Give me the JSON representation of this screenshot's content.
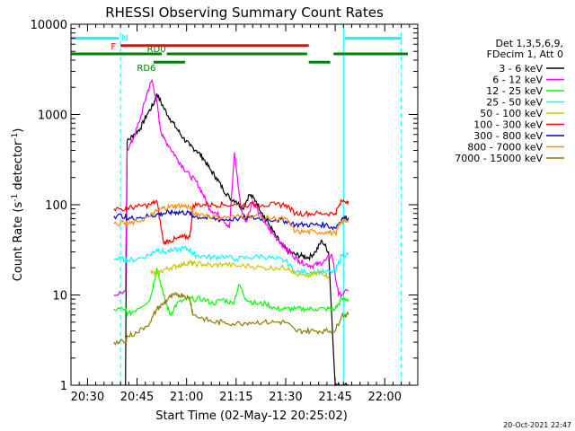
{
  "chart_data": {
    "type": "line",
    "title": "RHESSI Observing Summary Count Rates",
    "xlabel": "Start Time (02-May-12 20:25:02)",
    "ylabel": "Count Rate (s",
    "ylabel_sup": "-1",
    "ylabel_tail": " detector",
    "ylabel_sup2": "-1",
    "ylabel_close": ")",
    "x_unit": "minutes after 20:25:02",
    "xlim": [
      0,
      105
    ],
    "ylim": [
      1,
      10000
    ],
    "yscale": "log",
    "x_ticks": [
      {
        "value": 5,
        "label": "20:30"
      },
      {
        "value": 20,
        "label": "20:45"
      },
      {
        "value": 35,
        "label": "21:00"
      },
      {
        "value": 50,
        "label": "21:15"
      },
      {
        "value": 65,
        "label": "21:30"
      },
      {
        "value": 80,
        "label": "21:45"
      },
      {
        "value": 95,
        "label": "22:00"
      }
    ],
    "y_ticks": [
      {
        "value": 1,
        "label": "1"
      },
      {
        "value": 10,
        "label": "10"
      },
      {
        "value": 100,
        "label": "100"
      },
      {
        "value": 1000,
        "label": "1000"
      },
      {
        "value": 10000,
        "label": "10000"
      }
    ],
    "legend_placement": "right",
    "legend_header": [
      "Det 1,3,5,6,9,",
      "FDecim 1, Att 0"
    ],
    "series": [
      {
        "name": "3 - 6 keV",
        "color": "#000000",
        "x": [
          16.5,
          17,
          19,
          21,
          23,
          25,
          26,
          28,
          30,
          32,
          34,
          36,
          38,
          40,
          42,
          44,
          46,
          48,
          50,
          52,
          54,
          56,
          58,
          60,
          62,
          64,
          66,
          68,
          70,
          72,
          74,
          76,
          78,
          80,
          82,
          84
        ],
        "y": [
          1,
          500,
          600,
          700,
          1000,
          1300,
          1700,
          1200,
          900,
          700,
          550,
          450,
          400,
          330,
          250,
          200,
          150,
          120,
          110,
          90,
          130,
          110,
          80,
          60,
          45,
          35,
          30,
          28,
          27,
          26,
          30,
          40,
          30,
          1,
          1,
          1
        ]
      },
      {
        "name": "6 - 12 keV",
        "color": "#ff00ff",
        "x": [
          13,
          16.5,
          17,
          19,
          21,
          23,
          24.5,
          26,
          27,
          28,
          30,
          32,
          34,
          36,
          38,
          40,
          42,
          44,
          46,
          48,
          49.5,
          50.5,
          51.5,
          53,
          55,
          57,
          59,
          61,
          63,
          65,
          67,
          69,
          71,
          73,
          75,
          77,
          79,
          81,
          84
        ],
        "y": [
          10,
          11,
          400,
          550,
          900,
          1700,
          2400,
          1400,
          700,
          550,
          430,
          330,
          260,
          210,
          180,
          130,
          90,
          80,
          70,
          55,
          380,
          180,
          90,
          65,
          110,
          80,
          60,
          48,
          40,
          33,
          28,
          24,
          22,
          21,
          22,
          24,
          28,
          10,
          11
        ]
      },
      {
        "name": "12 - 25 keV",
        "color": "#00ff00",
        "x": [
          13,
          16.5,
          17,
          20,
          24,
          26,
          28,
          30,
          32,
          35,
          37,
          40,
          43,
          46,
          49,
          51,
          53,
          56,
          59,
          62,
          65,
          68,
          71,
          74,
          77,
          80,
          82,
          84
        ],
        "y": [
          7,
          7,
          6,
          7,
          9,
          20,
          10,
          6,
          8,
          9,
          9,
          9,
          8,
          9,
          8,
          13,
          9,
          8,
          8,
          7,
          7,
          7,
          7,
          7,
          7,
          7,
          9,
          9
        ]
      },
      {
        "name": "25 - 50 keV",
        "color": "#00ffff",
        "x": [
          13,
          16.5,
          17,
          20,
          24,
          26,
          28,
          31,
          34,
          36,
          37,
          40,
          43,
          46,
          50,
          54,
          58,
          62,
          65,
          68,
          71,
          74,
          77,
          80,
          82,
          84
        ],
        "y": [
          25,
          25,
          24,
          25,
          28,
          32,
          30,
          31,
          33,
          32,
          28,
          27,
          26,
          27,
          25,
          26,
          27,
          25,
          24,
          18,
          18,
          18,
          18,
          18,
          28,
          28
        ]
      },
      {
        "name": "50 - 100 keV",
        "color": "#c8c800",
        "x": [
          24,
          26,
          28,
          30,
          32,
          34,
          36,
          37,
          40,
          43,
          46,
          50,
          54,
          58,
          62,
          66,
          68,
          71,
          74,
          76,
          78
        ],
        "y": [
          18,
          17,
          19,
          20,
          21,
          22,
          23,
          22,
          22,
          21,
          22,
          21,
          21,
          20,
          20,
          20,
          17,
          16,
          17,
          18,
          16
        ]
      },
      {
        "name": "100 - 300 keV",
        "color": "#ff0000",
        "x": [
          13,
          16.5,
          17,
          20,
          24,
          26,
          28,
          30,
          32,
          34,
          36,
          37,
          40,
          43,
          46,
          50,
          54,
          58,
          62,
          65,
          68,
          71,
          74,
          77,
          80,
          82,
          84
        ],
        "y": [
          90,
          90,
          92,
          95,
          100,
          110,
          38,
          40,
          42,
          44,
          44,
          100,
          100,
          100,
          100,
          100,
          100,
          100,
          100,
          100,
          80,
          80,
          80,
          80,
          80,
          110,
          110
        ]
      },
      {
        "name": "300 - 800 keV",
        "color": "#0000cc",
        "x": [
          13,
          16.5,
          17,
          20,
          24,
          26,
          28,
          30,
          32,
          34,
          36,
          37,
          40,
          43,
          46,
          50,
          54,
          58,
          62,
          65,
          68,
          71,
          74,
          77,
          80,
          82,
          84
        ],
        "y": [
          75,
          75,
          70,
          72,
          75,
          78,
          80,
          82,
          83,
          82,
          80,
          75,
          72,
          70,
          68,
          70,
          72,
          70,
          68,
          66,
          60,
          60,
          60,
          60,
          55,
          70,
          72
        ]
      },
      {
        "name": "800 - 7000 keV",
        "color": "#ff8c00",
        "x": [
          13,
          16.5,
          17,
          20,
          24,
          26,
          28,
          30,
          32,
          34,
          36,
          37,
          40,
          43,
          46,
          50,
          54,
          58,
          62,
          65,
          68,
          71,
          74,
          77,
          80,
          82,
          84
        ],
        "y": [
          62,
          63,
          60,
          65,
          75,
          85,
          92,
          95,
          98,
          97,
          95,
          80,
          78,
          74,
          72,
          74,
          76,
          72,
          70,
          70,
          50,
          50,
          50,
          50,
          48,
          65,
          66
        ]
      },
      {
        "name": "7000 - 15000 keV",
        "color": "#8b7d00",
        "x": [
          13,
          16.5,
          17,
          20,
          24,
          26,
          28,
          30,
          32,
          34,
          36,
          37,
          40,
          43,
          46,
          50,
          54,
          58,
          62,
          65,
          68,
          71,
          74,
          77,
          80,
          82,
          84
        ],
        "y": [
          3,
          3,
          3.5,
          3.8,
          5,
          7,
          8,
          9.5,
          10,
          10,
          9,
          6,
          5.5,
          5,
          5,
          4.8,
          5,
          5,
          5,
          5,
          4,
          4,
          4,
          4,
          4,
          6,
          6
        ]
      }
    ],
    "annotations": [
      {
        "label": "N",
        "color": "#00ffff",
        "x_start": 0,
        "x_end": 14.5,
        "y": 7000
      },
      {
        "label": "",
        "color": "#00ffff",
        "x_start": 83,
        "x_end": 100,
        "y": 7000
      },
      {
        "label": "F",
        "color": "#ff0000",
        "x_start": 15,
        "x_end": 72,
        "y": 5800
      },
      {
        "label": "RD0",
        "color": "#008000",
        "x_start": 0,
        "x_end": 27.5,
        "y": 4700
      },
      {
        "label": "",
        "color": "#008000",
        "x_start": 29,
        "x_end": 71.5,
        "y": 4700
      },
      {
        "label": "",
        "color": "#008000",
        "x_start": 79.5,
        "x_end": 102,
        "y": 4700
      },
      {
        "label": "RD6",
        "color": "#008000",
        "x_start": 25,
        "x_end": 34.5,
        "y": 3800
      },
      {
        "label": "",
        "color": "#008000",
        "x_start": 72,
        "x_end": 78.5,
        "y": 3800
      }
    ],
    "vertical_markers": [
      {
        "x": 0,
        "color": "#00ffff",
        "style": "solid"
      },
      {
        "x": 15,
        "color": "#00ffff",
        "style": "dashed"
      },
      {
        "x": 82.5,
        "color": "#00ffff",
        "style": "solid"
      },
      {
        "x": 100,
        "color": "#00ffff",
        "style": "dashed"
      }
    ]
  },
  "footer": {
    "timestamp": "20-Oct-2021 22:47"
  }
}
